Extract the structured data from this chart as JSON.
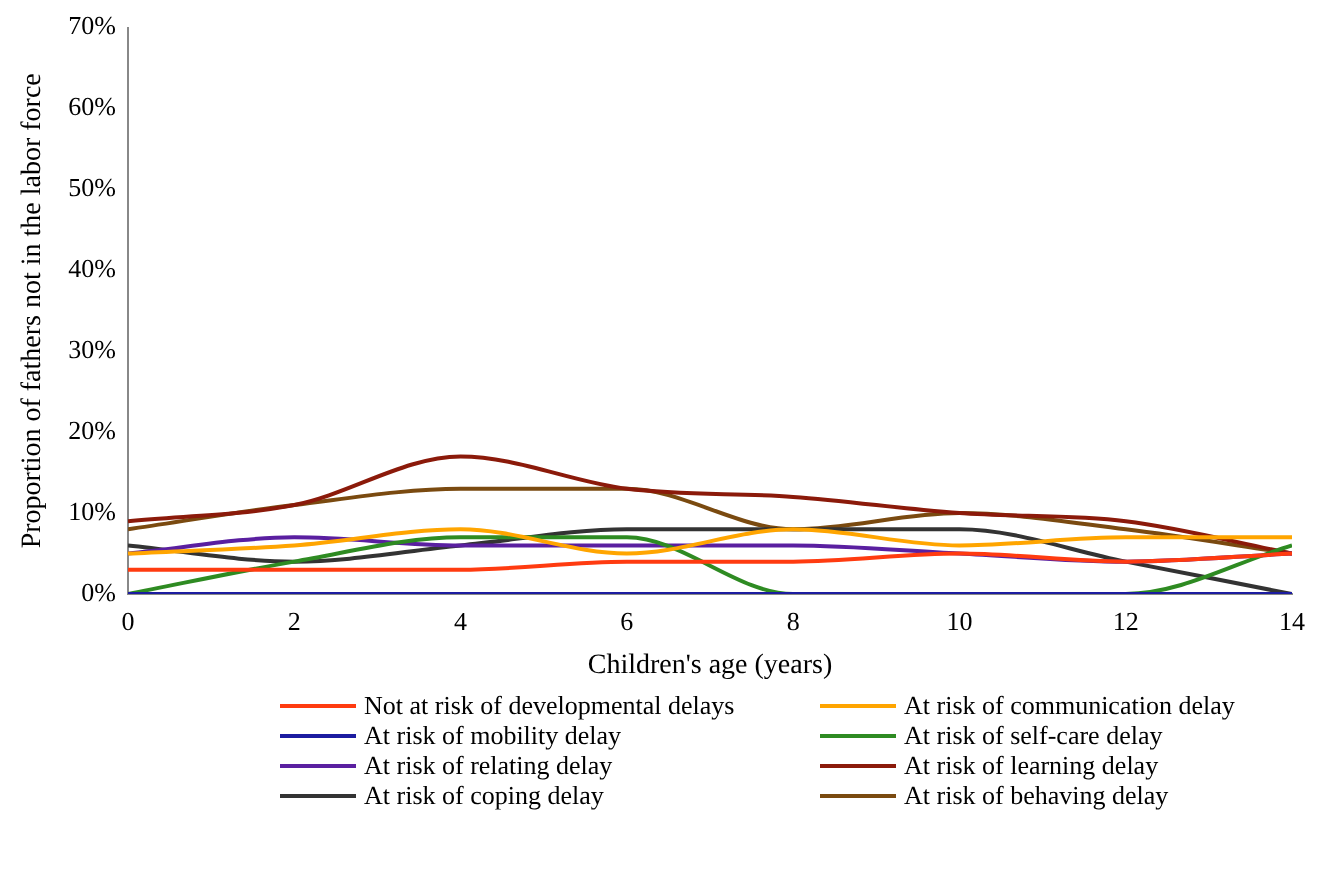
{
  "chart_data": {
    "type": "line",
    "xlabel": "Children's age (years)",
    "ylabel": "Proportion of fathers not in the labor force",
    "x": [
      0,
      2,
      4,
      6,
      8,
      10,
      12,
      14
    ],
    "xlim": [
      0,
      14
    ],
    "xticks": [
      0,
      2,
      4,
      6,
      8,
      10,
      12,
      14
    ],
    "ylim": [
      0,
      70
    ],
    "yticks": [
      {
        "value": 0,
        "label": "0%"
      },
      {
        "value": 10,
        "label": "10%"
      },
      {
        "value": 20,
        "label": "20%"
      },
      {
        "value": 30,
        "label": "30%"
      },
      {
        "value": 40,
        "label": "40%"
      },
      {
        "value": 50,
        "label": "50%"
      },
      {
        "value": 60,
        "label": "60%"
      },
      {
        "value": 70,
        "label": "70%"
      }
    ],
    "grid": false,
    "legend": "bottom",
    "marker": "none",
    "line_style": "solid",
    "series": [
      {
        "name": "Not at risk of developmental delays",
        "color": "#ff3b10",
        "values": [
          3,
          3,
          3,
          4,
          4,
          5,
          4,
          5
        ]
      },
      {
        "name": "At risk of communication delay",
        "color": "#ffa500",
        "values": [
          5,
          6,
          8,
          5,
          8,
          6,
          7,
          7
        ]
      },
      {
        "name": "At risk of mobility delay",
        "color": "#1c1ca0",
        "values": [
          0,
          0,
          0,
          0,
          0,
          0,
          0,
          0
        ]
      },
      {
        "name": "At risk of self-care delay",
        "color": "#2e8b22",
        "values": [
          0,
          4,
          7,
          7,
          0,
          null,
          0,
          6
        ]
      },
      {
        "name": "At risk of relating delay",
        "color": "#5a1fa0",
        "values": [
          5,
          7,
          6,
          6,
          6,
          5,
          4,
          5
        ]
      },
      {
        "name": "At risk of learning delay",
        "color": "#8b1a0a",
        "values": [
          9,
          11,
          17,
          13,
          12,
          10,
          9,
          5
        ]
      },
      {
        "name": "At risk of coping delay",
        "color": "#333333",
        "values": [
          6,
          4,
          6,
          8,
          8,
          8,
          4,
          0
        ]
      },
      {
        "name": "At risk of behaving delay",
        "color": "#7a4a10",
        "values": [
          8,
          11,
          13,
          13,
          8,
          10,
          8,
          5
        ]
      }
    ]
  }
}
